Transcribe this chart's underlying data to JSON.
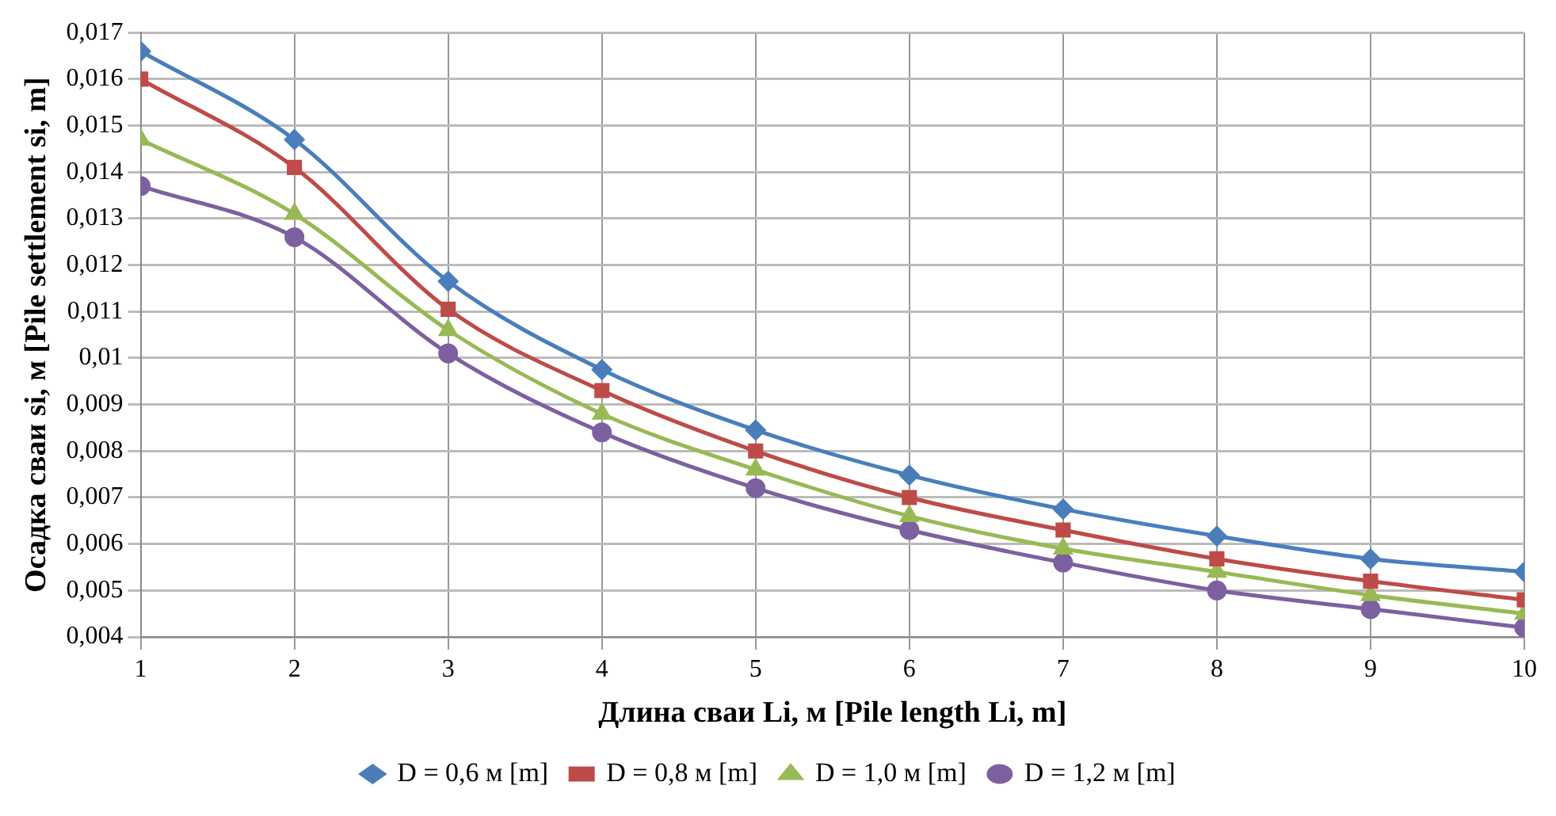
{
  "chart_data": {
    "type": "line",
    "xlabel": "Длина сваи Li, м [Pile length Li, m]",
    "ylabel": "Осадка сваи si, м [Pile settlement si, m]",
    "x": [
      1,
      2,
      3,
      4,
      5,
      6,
      7,
      8,
      9,
      10
    ],
    "xlim": [
      1,
      10
    ],
    "xticks": [
      1,
      2,
      3,
      4,
      5,
      6,
      7,
      8,
      9,
      10
    ],
    "ylim": [
      0.004,
      0.017
    ],
    "yticks": [
      {
        "value": 0.004,
        "label": "0,004"
      },
      {
        "value": 0.005,
        "label": "0,005"
      },
      {
        "value": 0.006,
        "label": "0,006"
      },
      {
        "value": 0.007,
        "label": "0,007"
      },
      {
        "value": 0.008,
        "label": "0,008"
      },
      {
        "value": 0.009,
        "label": "0,009"
      },
      {
        "value": 0.01,
        "label": "0,01"
      },
      {
        "value": 0.011,
        "label": "0,011"
      },
      {
        "value": 0.012,
        "label": "0,012"
      },
      {
        "value": 0.013,
        "label": "0,013"
      },
      {
        "value": 0.014,
        "label": "0,014"
      },
      {
        "value": 0.015,
        "label": "0,015"
      },
      {
        "value": 0.016,
        "label": "0,016"
      },
      {
        "value": 0.017,
        "label": "0,017"
      }
    ],
    "grid": true,
    "legend": "bottom",
    "series": [
      {
        "name": "D = 0,6 м [m]",
        "color": "#4a7ebb",
        "marker": "diamond",
        "values": [
          0.0166,
          0.0147,
          0.01165,
          0.00975,
          0.00845,
          0.00748,
          0.00675,
          0.00617,
          0.00568,
          0.0054
        ]
      },
      {
        "name": "D = 0,8 м [m]",
        "color": "#be4b48",
        "marker": "square",
        "values": [
          0.016,
          0.0141,
          0.01105,
          0.0093,
          0.008,
          0.007,
          0.0063,
          0.00568,
          0.0052,
          0.0048
        ]
      },
      {
        "name": "D = 1,0 м [m]",
        "color": "#98b954",
        "marker": "triangle",
        "values": [
          0.0147,
          0.0131,
          0.0106,
          0.0088,
          0.0076,
          0.0066,
          0.0059,
          0.0054,
          0.0049,
          0.0045
        ]
      },
      {
        "name": "D = 1,2 м [m]",
        "color": "#7d60a0",
        "marker": "circle",
        "values": [
          0.0137,
          0.0126,
          0.0101,
          0.0084,
          0.0072,
          0.0063,
          0.0056,
          0.005,
          0.0046,
          0.0042
        ]
      }
    ]
  }
}
